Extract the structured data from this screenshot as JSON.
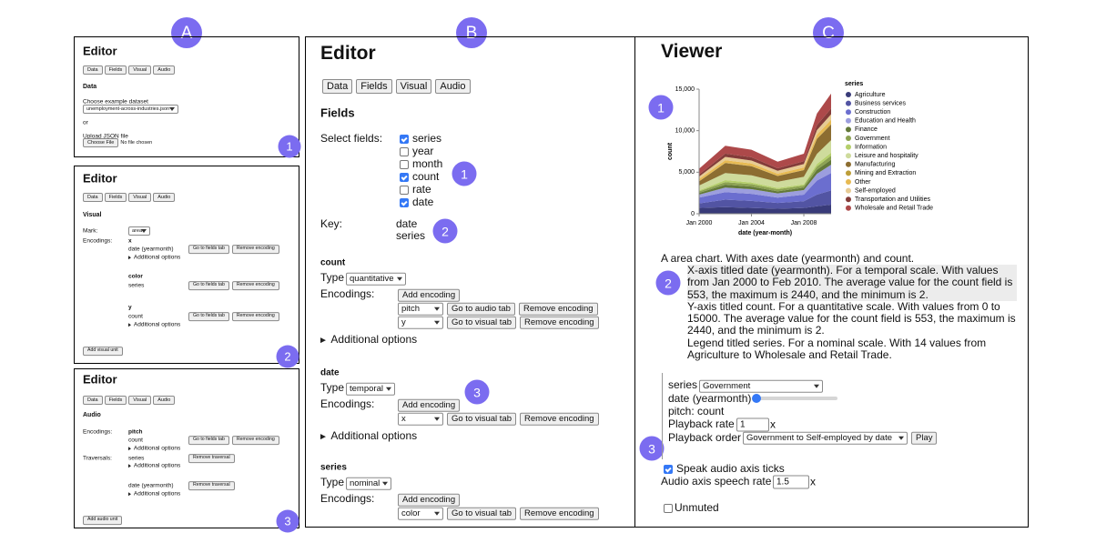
{
  "section_labels": [
    "A",
    "B",
    "C"
  ],
  "panel_a": {
    "data_editor": {
      "title": "Editor",
      "tabs": [
        "Data",
        "Fields",
        "Visual",
        "Audio"
      ],
      "heading": "Data",
      "choose_label": "Choose example dataset",
      "dataset": "unemployment-across-industries.json",
      "or": "or",
      "upload_label": "Upload JSON file",
      "file_button": "Choose File",
      "file_status": "No file chosen",
      "marker": "1"
    },
    "visual_editor": {
      "title": "Editor",
      "tabs": [
        "Data",
        "Fields",
        "Visual",
        "Audio"
      ],
      "heading": "Visual",
      "mark_label": "Mark:",
      "mark": "area",
      "encodings_label": "Encodings:",
      "encodings": [
        {
          "channel": "x",
          "field": "date (yearmonth)",
          "buttons": [
            "Go to fields tab",
            "Remove encoding"
          ],
          "options": "Additional options"
        },
        {
          "channel": "color",
          "field": "series",
          "buttons": [
            "Go to fields tab",
            "Remove encoding"
          ]
        },
        {
          "channel": "y",
          "field": "count",
          "buttons": [
            "Go to fields tab",
            "Remove encoding"
          ],
          "options": "Additional options"
        }
      ],
      "add_button": "Add visual unit",
      "marker": "2"
    },
    "audio_editor": {
      "title": "Editor",
      "tabs": [
        "Data",
        "Fields",
        "Visual",
        "Audio"
      ],
      "heading": "Audio",
      "encodings_label": "Encodings:",
      "encodings": [
        {
          "channel": "pitch",
          "field": "count",
          "buttons": [
            "Go to fields tab",
            "Remove encoding"
          ],
          "options": "Additional options"
        }
      ],
      "traversals_label": "Traversals:",
      "traversals": [
        {
          "field": "series",
          "button": "Remove traversal",
          "options": "Additional options"
        },
        {
          "field": "date (yearmonth)",
          "button": "Remove traversal",
          "options": "Additional options"
        }
      ],
      "add_button": "Add audio unit",
      "marker": "3"
    }
  },
  "panel_b": {
    "title": "Editor",
    "tabs": [
      "Data",
      "Fields",
      "Visual",
      "Audio"
    ],
    "heading": "Fields",
    "select_label": "Select fields:",
    "fields": [
      {
        "name": "series",
        "checked": true
      },
      {
        "name": "year",
        "checked": false
      },
      {
        "name": "month",
        "checked": false
      },
      {
        "name": "count",
        "checked": true
      },
      {
        "name": "rate",
        "checked": false
      },
      {
        "name": "date",
        "checked": true
      }
    ],
    "key_label": "Key:",
    "key": [
      "date",
      "series"
    ],
    "markers": [
      "1",
      "2",
      "3"
    ],
    "sections": [
      {
        "name": "count",
        "type_label": "Type",
        "type": "quantitative",
        "encodings_label": "Encodings:",
        "add_button": "Add encoding",
        "rows": [
          {
            "channel": "pitch",
            "buttons": [
              "Go to audio tab",
              "Remove encoding"
            ]
          },
          {
            "channel": "y",
            "buttons": [
              "Go to visual tab",
              "Remove encoding"
            ]
          }
        ],
        "options": "Additional options"
      },
      {
        "name": "date",
        "type_label": "Type",
        "type": "temporal",
        "encodings_label": "Encodings:",
        "add_button": "Add encoding",
        "rows": [
          {
            "channel": "x",
            "buttons": [
              "Go to visual tab",
              "Remove encoding"
            ]
          }
        ],
        "options": "Additional options"
      },
      {
        "name": "series",
        "type_label": "Type",
        "type": "nominal",
        "encodings_label": "Encodings:",
        "add_button": "Add encoding",
        "rows": [
          {
            "channel": "color",
            "buttons": [
              "Go to visual tab",
              "Remove encoding"
            ]
          }
        ]
      }
    ]
  },
  "panel_c": {
    "title": "Viewer",
    "markers": [
      "1",
      "2",
      "3"
    ],
    "chart": {
      "type": "area",
      "stacked": true,
      "x": [
        "2000-01",
        "2002-01",
        "2004-01",
        "2006-01",
        "2008-01",
        "2009-01",
        "2010-02"
      ],
      "xlim": [
        "2000-01",
        "2010-02"
      ],
      "xticks": [
        {
          "value": "2000-01",
          "label": "Jan 2000"
        },
        {
          "value": "2004-01",
          "label": "Jan 2004"
        },
        {
          "value": "2008-01",
          "label": "Jan 2008"
        }
      ],
      "ylim": [
        0,
        15000
      ],
      "yticks": [
        0,
        {
          "value": 5000,
          "label": "5,000"
        },
        {
          "value": 10000,
          "label": "10,000"
        },
        {
          "value": 15000,
          "label": "15,000"
        }
      ],
      "x_label": "date (year-month)",
      "y_label": "count",
      "legend_title": "series",
      "series": [
        {
          "name": "Agriculture",
          "color": "#393b79",
          "values": [
            700,
            800,
            700,
            600,
            700,
            900,
            1100
          ]
        },
        {
          "name": "Business services",
          "color": "#5254a3",
          "values": [
            550,
            900,
            850,
            700,
            800,
            1400,
            1700
          ]
        },
        {
          "name": "Construction",
          "color": "#6b6ecf",
          "values": [
            700,
            900,
            850,
            650,
            800,
            1700,
            2100
          ]
        },
        {
          "name": "Education and Health",
          "color": "#9c9ede",
          "values": [
            350,
            550,
            550,
            500,
            550,
            800,
            1000
          ]
        },
        {
          "name": "Finance",
          "color": "#637939",
          "values": [
            200,
            350,
            320,
            250,
            300,
            500,
            600
          ]
        },
        {
          "name": "Government",
          "color": "#8ca252",
          "values": [
            200,
            300,
            300,
            250,
            250,
            400,
            500
          ]
        },
        {
          "name": "Information",
          "color": "#b5cf6b",
          "values": [
            100,
            250,
            200,
            150,
            150,
            300,
            350
          ]
        },
        {
          "name": "Leisure and hospitality",
          "color": "#cedb9c",
          "values": [
            600,
            850,
            850,
            750,
            900,
            1200,
            1500
          ]
        },
        {
          "name": "Manufacturing",
          "color": "#8c6d31",
          "values": [
            500,
            1200,
            1100,
            700,
            800,
            1800,
            1900
          ]
        },
        {
          "name": "Mining and Extraction",
          "color": "#bd9e39",
          "values": [
            20,
            40,
            30,
            20,
            25,
            60,
            70
          ]
        },
        {
          "name": "Other",
          "color": "#e7ba52",
          "values": [
            250,
            300,
            300,
            250,
            300,
            450,
            500
          ]
        },
        {
          "name": "Self-employed",
          "color": "#e7cb94",
          "values": [
            300,
            400,
            350,
            350,
            400,
            550,
            650
          ]
        },
        {
          "name": "Transportation and Utilities",
          "color": "#843c39",
          "values": [
            250,
            400,
            400,
            300,
            350,
            600,
            700
          ]
        },
        {
          "name": "Wholesale and Retail Trade",
          "color": "#ad494a",
          "values": [
            700,
            950,
            900,
            800,
            900,
            1400,
            1800
          ]
        }
      ]
    },
    "description": {
      "summary": "A area chart. With axes date (yearmonth) and count.",
      "details": [
        "X-axis titled date (yearmonth). For a temporal scale. With values from Jan 2000 to Feb 2010. The average value for the count field is 553, the maximum is 2440, and the minimum is 2.",
        "Y-axis titled count. For a quantitative scale. With values from 0 to 15000. The average value for the count field is 553, the maximum is 2440, and the minimum is 2.",
        "Legend titled series. For a nominal scale. With 14 values from Agriculture to Wholesale and Retail Trade."
      ],
      "highlight": 0
    },
    "controls": {
      "series_label": "series",
      "series": "Government",
      "slider_label": "date (yearmonth)",
      "pitch": "pitch: count",
      "rate_label": "Playback rate",
      "rate": 1,
      "rate_unit": "x",
      "order_label": "Playback order",
      "order": "Government to Self-employed by date",
      "play": "Play",
      "speak": {
        "label": "Speak audio axis ticks",
        "checked": true
      },
      "speech_rate_label": "Audio axis speech rate",
      "speech_rate": 1.5,
      "speech_rate_unit": "x",
      "mute": {
        "label": "Unmuted",
        "checked": false
      }
    }
  }
}
